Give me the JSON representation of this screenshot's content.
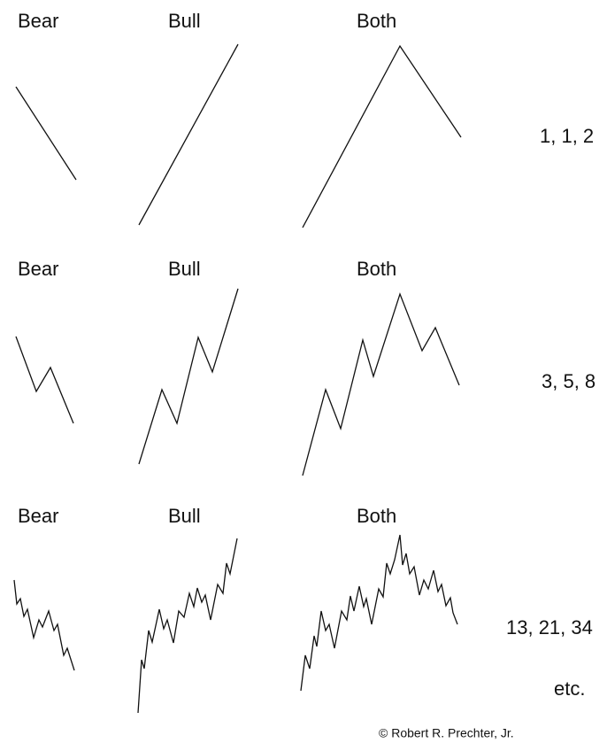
{
  "rows": [
    {
      "labels": [
        "Bear",
        "Bull",
        "Both"
      ],
      "count": "1, 1, 2"
    },
    {
      "labels": [
        "Bear",
        "Bull",
        "Both"
      ],
      "count": "3, 5, 8"
    },
    {
      "labels": [
        "Bear",
        "Bull",
        "Both"
      ],
      "count": "13, 21, 34"
    }
  ],
  "etc": "etc.",
  "credit": "© Robert R. Prechter, Jr."
}
